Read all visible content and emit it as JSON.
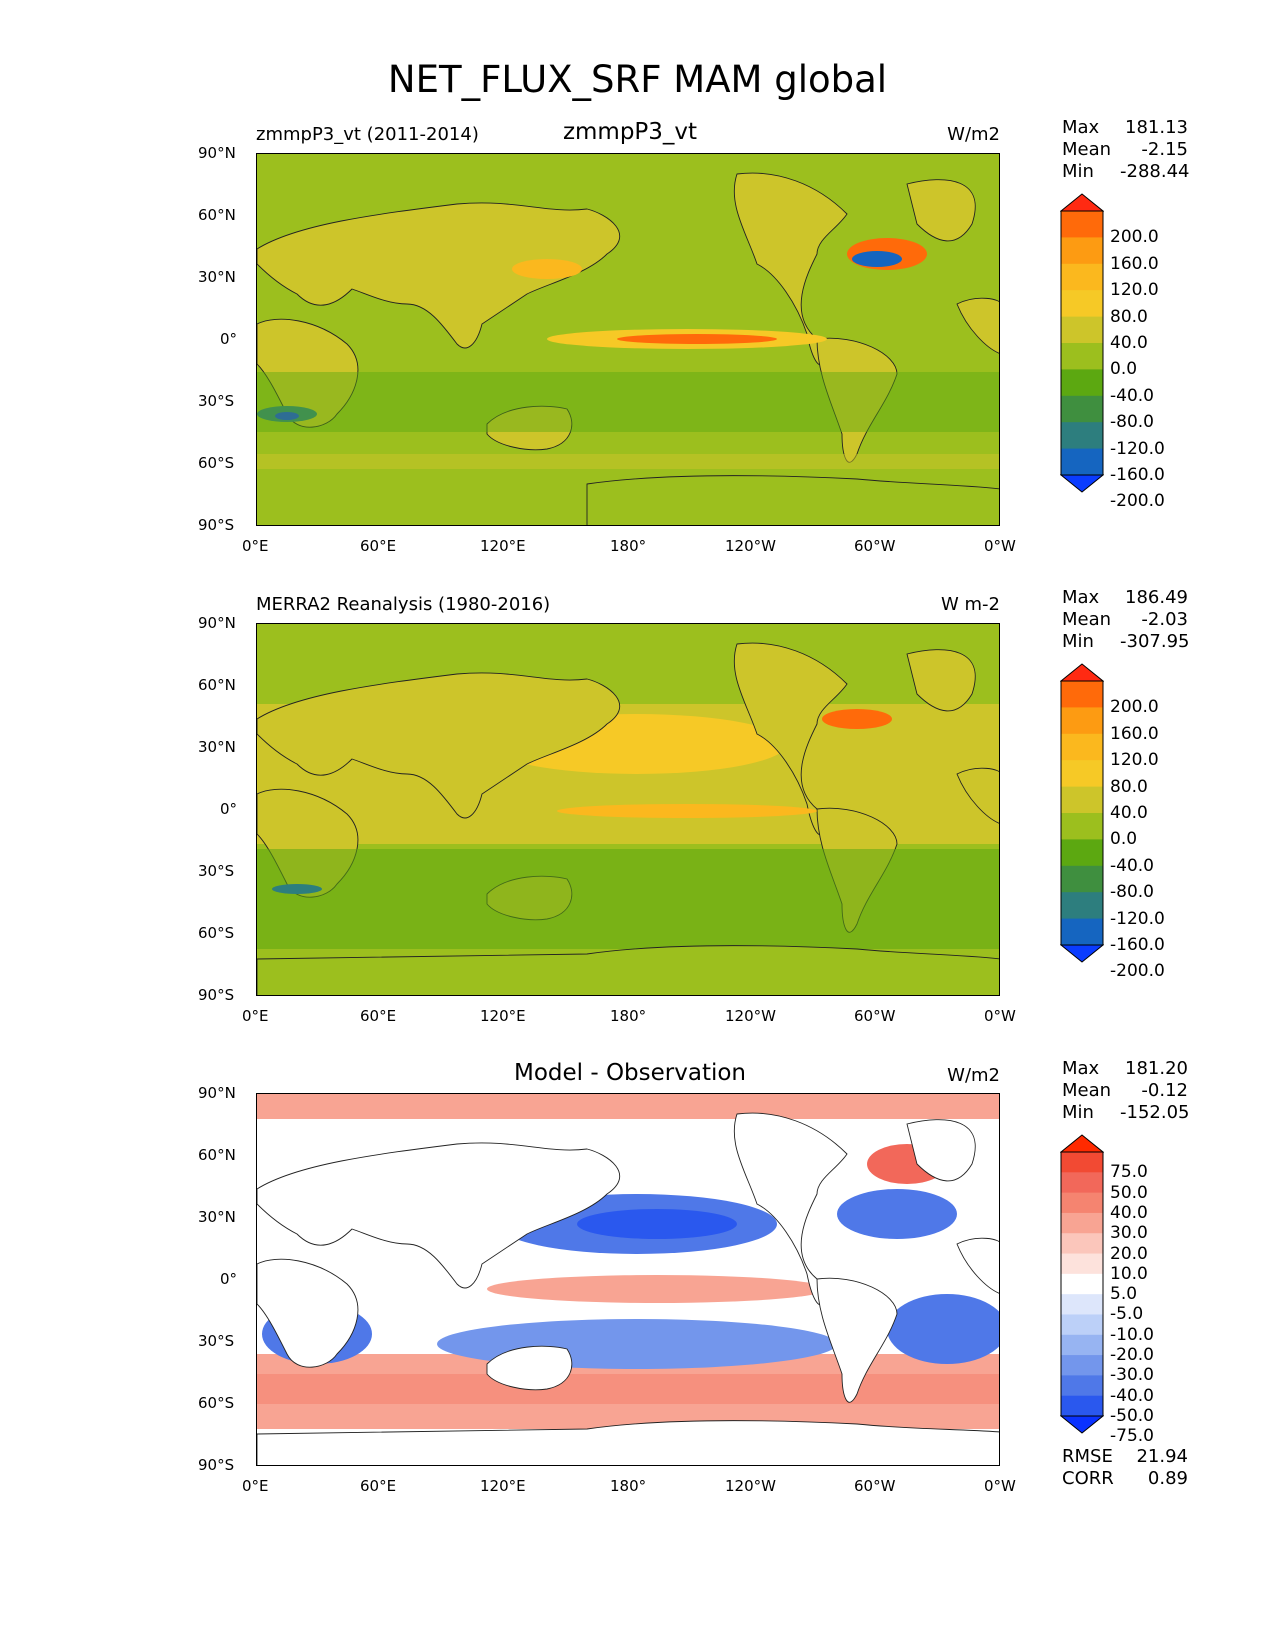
{
  "figure_title": "NET_FLUX_SRF MAM global",
  "lat_ticks": [
    "90°N",
    "60°N",
    "30°N",
    "0°",
    "30°S",
    "60°S",
    "90°S"
  ],
  "lon_ticks": [
    "0°E",
    "60°E",
    "120°E",
    "180°",
    "120°W",
    "60°W",
    "0°W"
  ],
  "panels": [
    {
      "left_title": "zmmpP3_vt (2011-2014)",
      "center_title": "zmmpP3_vt",
      "units": "W/m2",
      "stats": {
        "max_label": "Max",
        "max": "181.13",
        "mean_label": "Mean",
        "mean": "-2.15",
        "min_label": "Min",
        "min": "-288.44"
      },
      "colorbar": {
        "levels": [
          "200.0",
          "160.0",
          "120.0",
          "80.0",
          "40.0",
          "0.0",
          "-40.0",
          "-80.0",
          "-120.0",
          "-160.0",
          "-200.0"
        ],
        "colors": [
          "#ff2a12",
          "#ff6a0a",
          "#fd9b12",
          "#fbb81e",
          "#f6c926",
          "#cdc52a",
          "#9cbf1e",
          "#5ca811",
          "#3f8f3f",
          "#2d7e7e",
          "#1565c0",
          "#0a3cff"
        ]
      }
    },
    {
      "left_title": "MERRA2 Reanalysis (1980-2016)",
      "center_title": "",
      "units": "W m-2",
      "stats": {
        "max_label": "Max",
        "max": "186.49",
        "mean_label": "Mean",
        "mean": "-2.03",
        "min_label": "Min",
        "min": "-307.95"
      },
      "colorbar": {
        "levels": [
          "200.0",
          "160.0",
          "120.0",
          "80.0",
          "40.0",
          "0.0",
          "-40.0",
          "-80.0",
          "-120.0",
          "-160.0",
          "-200.0"
        ],
        "colors": [
          "#ff2a12",
          "#ff6a0a",
          "#fd9b12",
          "#fbb81e",
          "#f6c926",
          "#cdc52a",
          "#9cbf1e",
          "#5ca811",
          "#3f8f3f",
          "#2d7e7e",
          "#1565c0",
          "#0a3cff"
        ]
      }
    },
    {
      "left_title": "",
      "center_title": "Model - Observation",
      "units": "W/m2",
      "stats": {
        "max_label": "Max",
        "max": "181.20",
        "mean_label": "Mean",
        "mean": "-0.12",
        "min_label": "Min",
        "min": "-152.05"
      },
      "colorbar": {
        "levels": [
          "75.0",
          "50.0",
          "40.0",
          "30.0",
          "20.0",
          "10.0",
          "5.0",
          "-5.0",
          "-10.0",
          "-20.0",
          "-30.0",
          "-40.0",
          "-50.0",
          "-75.0"
        ],
        "colors": [
          "#ff2a00",
          "#f24a33",
          "#f2685a",
          "#f58470",
          "#f8a493",
          "#fbc6bb",
          "#fde2dc",
          "#ffffff",
          "#dde6fb",
          "#bcd0f8",
          "#97b4f2",
          "#7396ec",
          "#4f78e8",
          "#2a58ee",
          "#0a32ff"
        ]
      },
      "rmse_label": "RMSE",
      "rmse": "21.94",
      "corr_label": "CORR",
      "corr": "0.89"
    }
  ]
}
